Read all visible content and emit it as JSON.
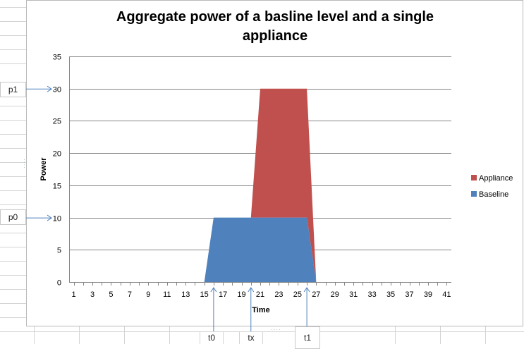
{
  "chart_data": {
    "type": "area",
    "title": "Aggregate power of a basline level and a single appliance",
    "xlabel": "Time",
    "ylabel": "Power",
    "x": [
      1,
      2,
      3,
      4,
      5,
      6,
      7,
      8,
      9,
      10,
      11,
      12,
      13,
      14,
      15,
      16,
      17,
      18,
      19,
      20,
      21,
      22,
      23,
      24,
      25,
      26,
      27,
      28,
      29,
      30,
      31,
      32,
      33,
      34,
      35,
      36,
      37,
      38,
      39,
      40,
      41
    ],
    "xtick_labels": [
      "1",
      "3",
      "5",
      "7",
      "9",
      "11",
      "13",
      "15",
      "17",
      "19",
      "21",
      "23",
      "25",
      "27",
      "29",
      "31",
      "33",
      "35",
      "37",
      "39",
      "41"
    ],
    "ylim": [
      0,
      35
    ],
    "yticks": [
      0,
      5,
      10,
      15,
      20,
      25,
      30,
      35
    ],
    "grid": true,
    "legend": "right",
    "stacked": true,
    "series": [
      {
        "name": "Baseline",
        "color": "#4f81bd",
        "values": [
          0,
          0,
          0,
          0,
          0,
          0,
          0,
          0,
          0,
          0,
          0,
          0,
          0,
          0,
          0,
          10,
          10,
          10,
          10,
          10,
          10,
          10,
          10,
          10,
          10,
          10,
          0,
          0,
          0,
          0,
          0,
          0,
          0,
          0,
          0,
          0,
          0,
          0,
          0,
          0,
          0
        ]
      },
      {
        "name": "Appliance",
        "color": "#c0504d",
        "values": [
          0,
          0,
          0,
          0,
          0,
          0,
          0,
          0,
          0,
          0,
          0,
          0,
          0,
          0,
          0,
          0,
          0,
          0,
          0,
          0,
          20,
          20,
          20,
          20,
          20,
          20,
          0,
          0,
          0,
          0,
          0,
          0,
          0,
          0,
          0,
          0,
          0,
          0,
          0,
          0,
          0
        ]
      }
    ]
  },
  "annotations": {
    "p1": "p1",
    "p0": "p0",
    "t0": "t0",
    "tx": "tx",
    "t1": "t1"
  }
}
